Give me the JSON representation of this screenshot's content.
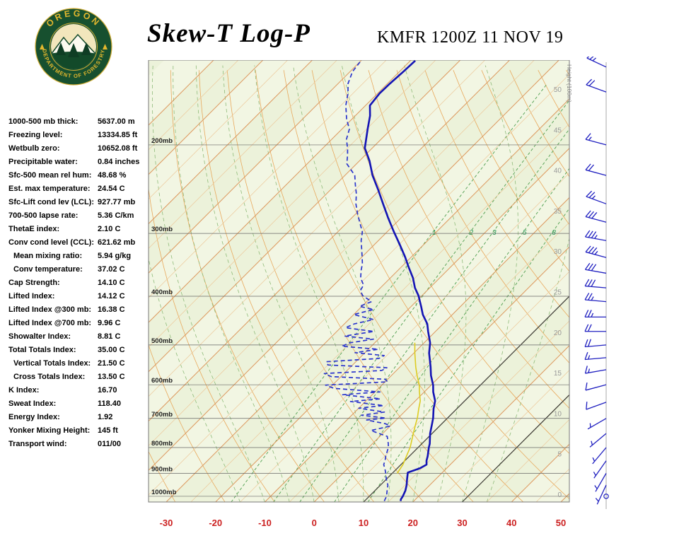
{
  "header": {
    "title": "Skew-T Log-P",
    "station_line": "KMFR 1200Z 11 NOV 19"
  },
  "logo": {
    "top_text": "OREGON",
    "bottom_text": "DEPARTMENT OF FORESTRY"
  },
  "indices": [
    {
      "label": "1000-500 mb thick:",
      "value": "5637.00 m"
    },
    {
      "label": "Freezing level:",
      "value": "13334.85 ft"
    },
    {
      "label": "Wetbulb zero:",
      "value": "10652.08 ft"
    },
    {
      "label": "Precipitable water:",
      "value": "0.84 inches"
    },
    {
      "label": "Sfc-500 mean rel hum:",
      "value": "48.68 %"
    },
    {
      "label": "Est. max temperature:",
      "value": "24.54 C"
    },
    {
      "label": "Sfc-Lift cond lev (LCL):",
      "value": "927.77 mb"
    },
    {
      "label": "700-500 lapse rate:",
      "value": "5.36 C/km"
    },
    {
      "label": "ThetaE index:",
      "value": "2.10 C"
    },
    {
      "label": "Conv cond level (CCL):",
      "value": "621.62 mb"
    },
    {
      "label": "Mean mixing ratio:",
      "value": "5.94 g/kg",
      "indent": true
    },
    {
      "label": "Conv temperature:",
      "value": "37.02 C",
      "indent": true
    },
    {
      "label": "Cap Strength:",
      "value": "14.10 C"
    },
    {
      "label": "Lifted Index:",
      "value": "14.12 C"
    },
    {
      "label": "Lifted Index @300 mb:",
      "value": "16.38 C"
    },
    {
      "label": "Lifted Index @700 mb:",
      "value": "9.96 C"
    },
    {
      "label": "Showalter Index:",
      "value": "8.81 C"
    },
    {
      "label": "Total Totals Index:",
      "value": "35.00 C"
    },
    {
      "label": "Vertical Totals Index:",
      "value": "21.50 C",
      "indent": true
    },
    {
      "label": "Cross Totals Index:",
      "value": "13.50 C",
      "indent": true
    },
    {
      "label": "K Index:",
      "value": "16.70"
    },
    {
      "label": "Sweat Index:",
      "value": "118.40"
    },
    {
      "label": "Energy Index:",
      "value": "1.92"
    },
    {
      "label": "Yonker Mixing Height:",
      "value": "145 ft"
    },
    {
      "label": "Transport wind:",
      "value": "011/00"
    }
  ],
  "chart_data": {
    "type": "line",
    "title": "Skew-T Log-P",
    "station": "KMFR 1200Z 11 NOV 19",
    "x_axis_ticks_c": [
      -30,
      -20,
      -10,
      0,
      10,
      20,
      30,
      40,
      50
    ],
    "pressure_levels_mb": [
      200,
      300,
      400,
      500,
      600,
      700,
      800,
      900,
      1000
    ],
    "pressure_label_suffix": "mb",
    "height_axis": {
      "label": "Height (100m)",
      "ticks": [
        0,
        5,
        10,
        15,
        20,
        25,
        30,
        35,
        40,
        45,
        50
      ]
    },
    "mixing_ratio_g_per_kg": [
      1,
      2,
      3,
      5,
      8
    ],
    "moist_adiabat_start_temps_c": [
      -15,
      -10,
      -5,
      0,
      5,
      10,
      15,
      20,
      25,
      30,
      35
    ],
    "dry_adiabat_theta_range_c": {
      "min": -30,
      "max": 190,
      "step": 10
    },
    "isotherm_range_c": {
      "min": -110,
      "max": 50,
      "step": 5
    },
    "dark_isotherms_c": [
      10,
      30
    ],
    "series": [
      {
        "name": "temperature",
        "style": "solid",
        "width": 2.6,
        "points": [
          [
            1022,
            17.3
          ],
          [
            1013,
            17.0
          ],
          [
            1000,
            16.8
          ],
          [
            975,
            16.2
          ],
          [
            950,
            15.3
          ],
          [
            925,
            14.2
          ],
          [
            897,
            13.0
          ],
          [
            880,
            14.6
          ],
          [
            865,
            15.2
          ],
          [
            850,
            14.4
          ],
          [
            832,
            13.7
          ],
          [
            800,
            12.2
          ],
          [
            786,
            11.6
          ],
          [
            750,
            9.6
          ],
          [
            717,
            8.0
          ],
          [
            699,
            7.1
          ],
          [
            670,
            5.3
          ],
          [
            646,
            4.0
          ],
          [
            620,
            1.8
          ],
          [
            601,
            0.4
          ],
          [
            575,
            -2.0
          ],
          [
            553,
            -3.8
          ],
          [
            519,
            -6.9
          ],
          [
            495,
            -8.8
          ],
          [
            470,
            -11.5
          ],
          [
            454,
            -13.2
          ],
          [
            435,
            -16.0
          ],
          [
            419,
            -18.0
          ],
          [
            399,
            -20.7
          ],
          [
            385,
            -23.0
          ],
          [
            368,
            -25.4
          ],
          [
            350,
            -28.5
          ],
          [
            334,
            -31.3
          ],
          [
            315,
            -35.0
          ],
          [
            298,
            -38.6
          ],
          [
            280,
            -42.5
          ],
          [
            262,
            -46.5
          ],
          [
            245,
            -50.5
          ],
          [
            230,
            -54.4
          ],
          [
            215,
            -58.0
          ],
          [
            203,
            -61.5
          ],
          [
            186,
            -64.8
          ],
          [
            175,
            -67.0
          ],
          [
            167,
            -69.1
          ],
          [
            158,
            -69.6
          ],
          [
            151,
            -69.5
          ],
          [
            143,
            -69.2
          ],
          [
            136,
            -69.0
          ]
        ]
      },
      {
        "name": "dewpoint",
        "style": "dashed",
        "width": 1.7,
        "points": [
          [
            1022,
            14.0
          ],
          [
            1000,
            13.5
          ],
          [
            975,
            12.5
          ],
          [
            950,
            11.5
          ],
          [
            925,
            10.0
          ],
          [
            897,
            8.5
          ],
          [
            880,
            7.5
          ],
          [
            865,
            6.5
          ],
          [
            850,
            6.0
          ],
          [
            832,
            5.2
          ],
          [
            800,
            4.0
          ],
          [
            786,
            3.2
          ],
          [
            760,
            1.5
          ],
          [
            740,
            -3.0
          ],
          [
            725,
            0.0
          ],
          [
            717,
            -1.5
          ],
          [
            705,
            -6.0
          ],
          [
            699,
            -2.5
          ],
          [
            690,
            -8.0
          ],
          [
            680,
            -4.0
          ],
          [
            668,
            -10.0
          ],
          [
            660,
            -5.5
          ],
          [
            648,
            -13.0
          ],
          [
            640,
            -7.5
          ],
          [
            628,
            -16.0
          ],
          [
            620,
            -9.0
          ],
          [
            610,
            -19.0
          ],
          [
            601,
            -21.4
          ],
          [
            592,
            -9.5
          ],
          [
            585,
            -10.5
          ],
          [
            578,
            -22.0
          ],
          [
            570,
            -24.0
          ],
          [
            562,
            -13.0
          ],
          [
            555,
            -12.5
          ],
          [
            548,
            -25.0
          ],
          [
            540,
            -26.0
          ],
          [
            532,
            -16.0
          ],
          [
            525,
            -15.5
          ],
          [
            518,
            -22.0
          ],
          [
            510,
            -18.0
          ],
          [
            503,
            -26.0
          ],
          [
            495,
            -25.0
          ],
          [
            487,
            -21.0
          ],
          [
            480,
            -27.5
          ],
          [
            470,
            -22.5
          ],
          [
            462,
            -29.0
          ],
          [
            454,
            -28.0
          ],
          [
            445,
            -25.0
          ],
          [
            435,
            -30.0
          ],
          [
            425,
            -27.0
          ],
          [
            419,
            -30.5
          ],
          [
            410,
            -29.0
          ],
          [
            399,
            -32.0
          ],
          [
            390,
            -33.5
          ],
          [
            380,
            -34.0
          ],
          [
            368,
            -36.0
          ],
          [
            355,
            -37.5
          ],
          [
            345,
            -38.5
          ],
          [
            334,
            -40.0
          ],
          [
            320,
            -42.0
          ],
          [
            310,
            -43.5
          ],
          [
            298,
            -45.0
          ],
          [
            285,
            -47.5
          ],
          [
            275,
            -49.5
          ],
          [
            262,
            -52.0
          ],
          [
            250,
            -54.0
          ],
          [
            240,
            -56.0
          ],
          [
            230,
            -58.0
          ],
          [
            218,
            -62.0
          ],
          [
            210,
            -63.5
          ],
          [
            203,
            -65.0
          ],
          [
            195,
            -67.0
          ],
          [
            186,
            -68.5
          ],
          [
            178,
            -71.0
          ],
          [
            167,
            -74.0
          ],
          [
            158,
            -76.0
          ],
          [
            151,
            -78.0
          ],
          [
            143,
            -79.5
          ],
          [
            136,
            -80.0
          ]
        ]
      },
      {
        "name": "wet_bulb",
        "style": "solid",
        "width": 1.6,
        "points": [
          [
            900,
            11.0
          ],
          [
            865,
            10.4
          ],
          [
            832,
            9.4
          ],
          [
            800,
            8.4
          ],
          [
            786,
            7.8
          ],
          [
            750,
            6.2
          ],
          [
            717,
            4.7
          ],
          [
            699,
            3.9
          ],
          [
            670,
            2.3
          ],
          [
            646,
            1.0
          ],
          [
            620,
            -1.0
          ],
          [
            601,
            -2.4
          ],
          [
            575,
            -4.8
          ],
          [
            553,
            -6.8
          ],
          [
            519,
            -9.8
          ],
          [
            495,
            -11.9
          ]
        ]
      }
    ],
    "wind_barbs_kt": [
      {
        "p": 140,
        "dir": 295,
        "spd": 25
      },
      {
        "p": 157,
        "dir": 290,
        "spd": 20
      },
      {
        "p": 200,
        "dir": 285,
        "spd": 15
      },
      {
        "p": 230,
        "dir": 285,
        "spd": 20
      },
      {
        "p": 262,
        "dir": 290,
        "spd": 25
      },
      {
        "p": 285,
        "dir": 285,
        "spd": 30
      },
      {
        "p": 310,
        "dir": 280,
        "spd": 35
      },
      {
        "p": 335,
        "dir": 285,
        "spd": 35
      },
      {
        "p": 360,
        "dir": 280,
        "spd": 30
      },
      {
        "p": 385,
        "dir": 275,
        "spd": 30
      },
      {
        "p": 410,
        "dir": 275,
        "spd": 25
      },
      {
        "p": 440,
        "dir": 270,
        "spd": 25
      },
      {
        "p": 470,
        "dir": 270,
        "spd": 20
      },
      {
        "p": 500,
        "dir": 265,
        "spd": 20
      },
      {
        "p": 530,
        "dir": 265,
        "spd": 15
      },
      {
        "p": 560,
        "dir": 260,
        "spd": 15
      },
      {
        "p": 600,
        "dir": 255,
        "spd": 10
      },
      {
        "p": 650,
        "dir": 250,
        "spd": 10
      },
      {
        "p": 700,
        "dir": 240,
        "spd": 5
      },
      {
        "p": 750,
        "dir": 230,
        "spd": 5
      },
      {
        "p": 800,
        "dir": 220,
        "spd": 5
      },
      {
        "p": 850,
        "dir": 215,
        "spd": 5
      },
      {
        "p": 900,
        "dir": 210,
        "spd": 3
      },
      {
        "p": 950,
        "dir": 205,
        "spd": 3
      },
      {
        "p": 1000,
        "dir": 11,
        "spd": 0
      }
    ],
    "colors": {
      "background": "#f2f6e3",
      "band_alt": "#ecf2da",
      "isotherm": "#dd9a60",
      "isotherm_minor": "#ecc89a",
      "isotherm_dark": "#3c3a33",
      "dry_adiabat": "#e8a85c",
      "moist_adiabat": "#8fbb7a",
      "mixing_ratio": "#4f9e4f",
      "mixing_ratio_label": "#2e9958",
      "isobar": "#666666",
      "border": "#777777",
      "temperature": "#1414b4",
      "dewpoint": "#2a35cc",
      "wet_bulb": "#ddcc22",
      "wind_barb": "#2020c0",
      "temp_axis_labels": "#cc2020",
      "pressure_labels": "#222222",
      "height_labels": "#999999"
    }
  }
}
